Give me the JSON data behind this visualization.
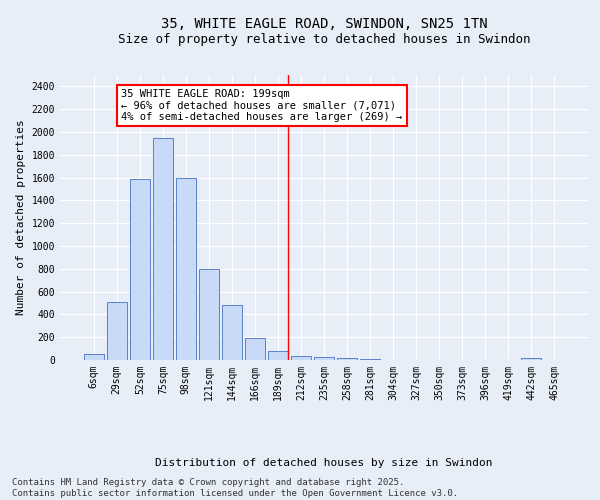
{
  "title": "35, WHITE EAGLE ROAD, SWINDON, SN25 1TN",
  "subtitle": "Size of property relative to detached houses in Swindon",
  "xlabel": "Distribution of detached houses by size in Swindon",
  "ylabel": "Number of detached properties",
  "categories": [
    "6sqm",
    "29sqm",
    "52sqm",
    "75sqm",
    "98sqm",
    "121sqm",
    "144sqm",
    "166sqm",
    "189sqm",
    "212sqm",
    "235sqm",
    "258sqm",
    "281sqm",
    "304sqm",
    "327sqm",
    "350sqm",
    "373sqm",
    "396sqm",
    "419sqm",
    "442sqm",
    "465sqm"
  ],
  "values": [
    55,
    510,
    1590,
    1950,
    1600,
    800,
    485,
    195,
    80,
    38,
    22,
    14,
    6,
    4,
    0,
    0,
    0,
    0,
    0,
    15,
    0
  ],
  "bar_color": "#c9daf8",
  "bar_edge_color": "#4472c4",
  "vline_color": "red",
  "annotation_text": "35 WHITE EAGLE ROAD: 199sqm\n← 96% of detached houses are smaller (7,071)\n4% of semi-detached houses are larger (269) →",
  "annotation_box_color": "white",
  "annotation_box_edge": "red",
  "ylim": [
    0,
    2500
  ],
  "yticks": [
    0,
    200,
    400,
    600,
    800,
    1000,
    1200,
    1400,
    1600,
    1800,
    2000,
    2200,
    2400
  ],
  "background_color": "#e8eef8",
  "grid_color": "white",
  "footer_text": "Contains HM Land Registry data © Crown copyright and database right 2025.\nContains public sector information licensed under the Open Government Licence v3.0.",
  "title_fontsize": 10,
  "subtitle_fontsize": 9,
  "xlabel_fontsize": 8,
  "ylabel_fontsize": 8,
  "tick_fontsize": 7,
  "annotation_fontsize": 7.5,
  "footer_fontsize": 6.5
}
